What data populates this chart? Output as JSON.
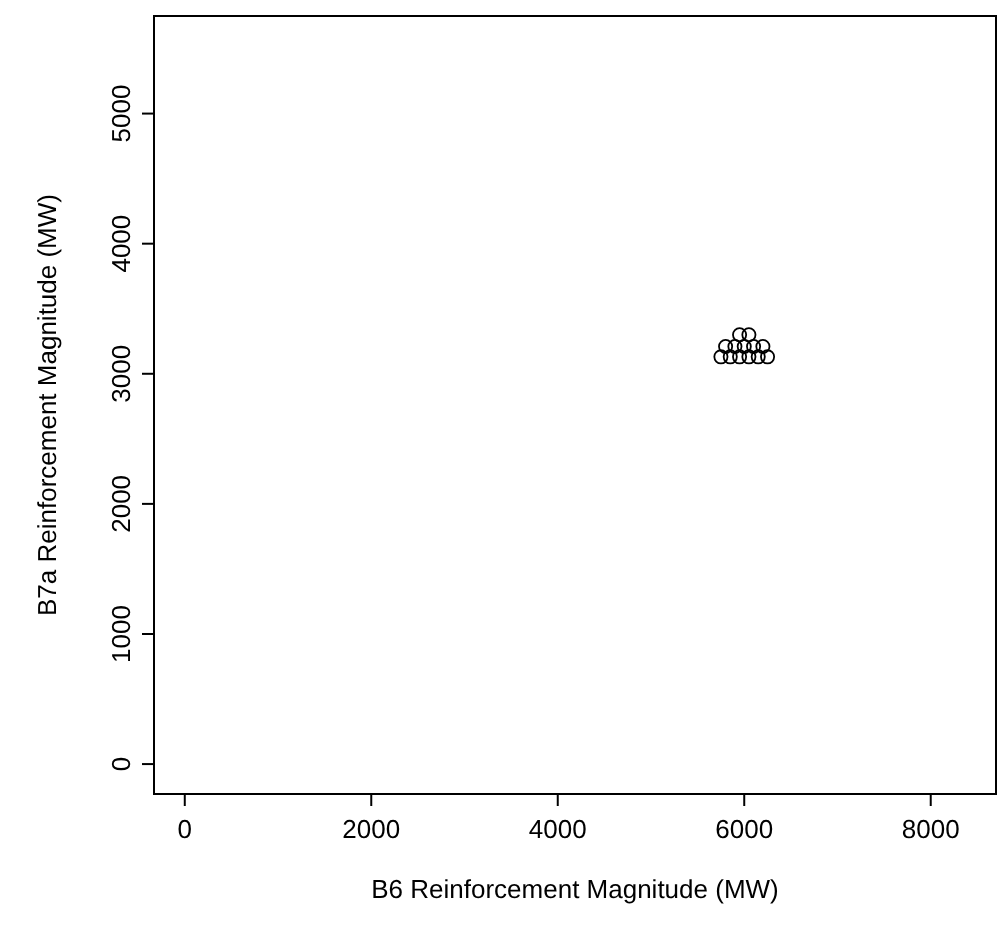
{
  "chart_data": {
    "type": "scatter",
    "xlabel": "B6 Reinforcement Magnitude (MW)",
    "ylabel": "B7a Reinforcement Magnitude (MW)",
    "x": [
      5750,
      5850,
      5950,
      6050,
      6150,
      6250,
      5800,
      5900,
      6000,
      6100,
      6200,
      5950,
      6050
    ],
    "values": [
      3130,
      3130,
      3130,
      3130,
      3130,
      3130,
      3210,
      3210,
      3210,
      3210,
      3210,
      3300,
      3300
    ],
    "color": "#000000",
    "marker": "circle",
    "xlim": [
      -330,
      8700
    ],
    "ylim": [
      -230,
      5750
    ],
    "xticks": [
      0,
      2000,
      4000,
      6000,
      8000
    ],
    "yticks": [
      0,
      1000,
      2000,
      3000,
      4000,
      5000
    ]
  }
}
